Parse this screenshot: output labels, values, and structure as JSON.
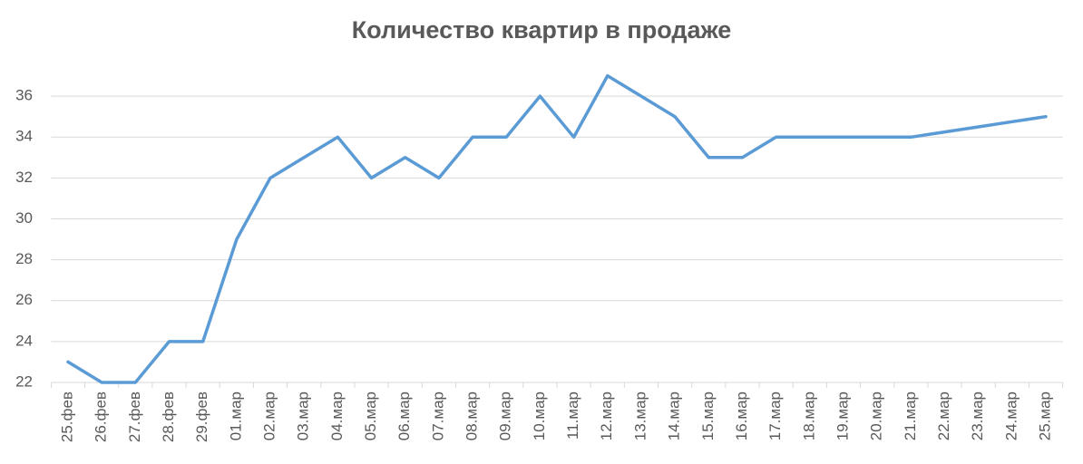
{
  "chart_data": {
    "type": "line",
    "title": "Количество квартир в продаже",
    "categories": [
      "25.фев",
      "26.фев",
      "27.фев",
      "28.фев",
      "29.фев",
      "01.мар",
      "02.мар",
      "03.мар",
      "04.мар",
      "05.мар",
      "06.мар",
      "07.мар",
      "08.мар",
      "09.мар",
      "10.мар",
      "11.мар",
      "12.мар",
      "13.мар",
      "14.мар",
      "15.мар",
      "16.мар",
      "17.мар",
      "18.мар",
      "19.мар",
      "20.мар",
      "21.мар",
      "22.мар",
      "23.мар",
      "24.мар",
      "25.мар"
    ],
    "series": [
      {
        "name": "Количество квартир",
        "color": "#5b9bd5",
        "values": [
          23,
          22,
          22,
          24,
          24,
          29,
          32,
          33,
          34,
          32,
          33,
          32,
          34,
          34,
          36,
          34,
          37,
          36,
          35,
          33,
          33,
          34,
          34,
          34,
          34,
          34,
          34.25,
          34.5,
          34.75,
          35
        ]
      }
    ],
    "ylim": [
      22,
      38
    ],
    "yticks": [
      22,
      24,
      26,
      28,
      30,
      32,
      34,
      36
    ],
    "grid": true
  }
}
